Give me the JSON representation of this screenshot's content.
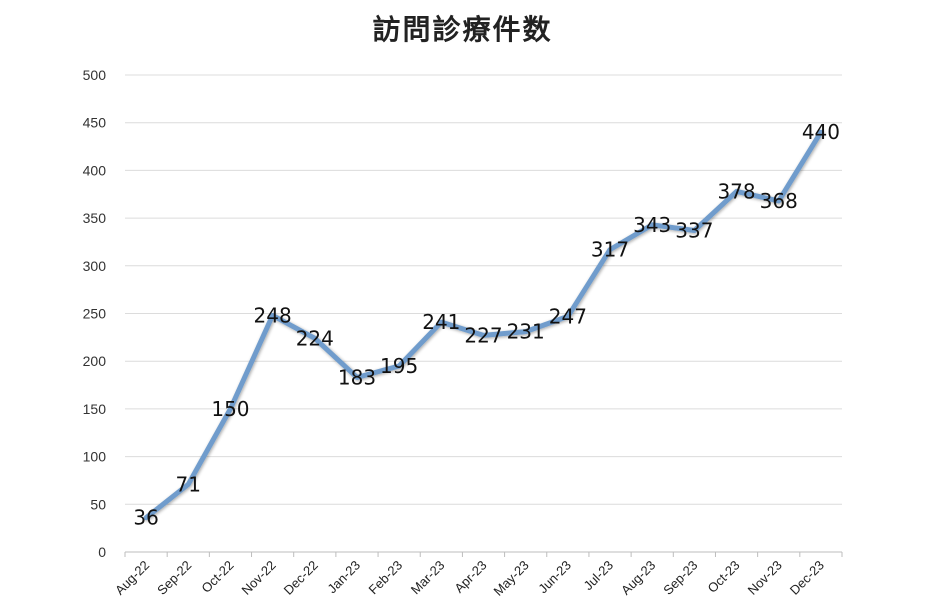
{
  "chart_data": {
    "type": "line",
    "title": "訪問診療件数",
    "categories": [
      "Aug-22",
      "Sep-22",
      "Oct-22",
      "Nov-22",
      "Dec-22",
      "Jan-23",
      "Feb-23",
      "Mar-23",
      "Apr-23",
      "May-23",
      "Jun-23",
      "Jul-23",
      "Aug-23",
      "Sep-23",
      "Oct-23",
      "Nov-23",
      "Dec-23"
    ],
    "series": [
      {
        "values": [
          36,
          71,
          150,
          248,
          224,
          183,
          195,
          241,
          227,
          231,
          247,
          317,
          343,
          337,
          378,
          368,
          440
        ]
      }
    ],
    "ylim": [
      0,
      500
    ],
    "yticks": [
      0,
      50,
      100,
      150,
      200,
      250,
      300,
      350,
      400,
      450,
      500
    ],
    "grid": true,
    "legend": "none",
    "line_color": "#6f9ccc",
    "data_labels": true
  }
}
